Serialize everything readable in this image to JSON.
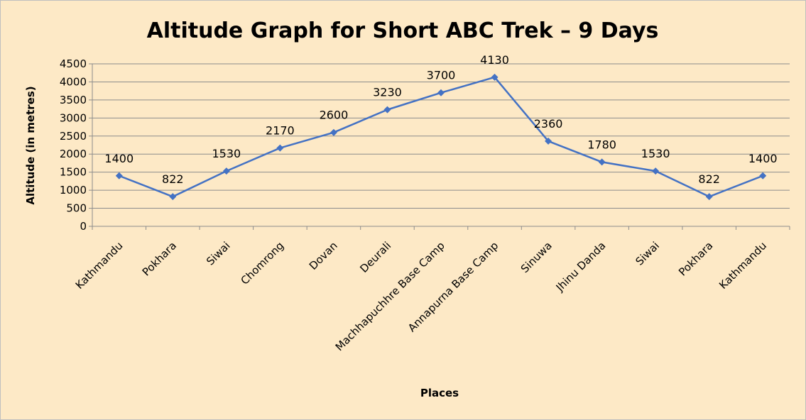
{
  "chart_data": {
    "type": "line",
    "title": "Altitude Graph for Short ABC Trek – 9 Days",
    "xlabel": "Places",
    "ylabel": "Altitude (in metres)",
    "ylim": [
      0,
      4500
    ],
    "yticks": [
      0,
      500,
      1000,
      1500,
      2000,
      2500,
      3000,
      3500,
      4000,
      4500
    ],
    "grid": true,
    "legend": "none",
    "categories": [
      "Kathmandu",
      "Pokhara",
      "Siwai",
      "Chomrong",
      "Dovan",
      "Deurali",
      "Machhapuchhre Base Camp",
      "Annapurna Base Camp",
      "Sinuwa",
      "Jhinu Danda",
      "Siwai",
      "Pokhara",
      "Kathmandu"
    ],
    "series": [
      {
        "values": [
          1400,
          822,
          1530,
          2170,
          2600,
          3230,
          3700,
          4130,
          2360,
          1780,
          1530,
          822,
          1400
        ],
        "color": "#4472c4",
        "marker": "diamond"
      }
    ],
    "data_labels": [
      "1400",
      "822",
      "1530",
      "2170",
      "2600",
      "3230",
      "3700",
      "4130",
      "2360",
      "1780",
      "1530",
      "822",
      "1400"
    ]
  }
}
